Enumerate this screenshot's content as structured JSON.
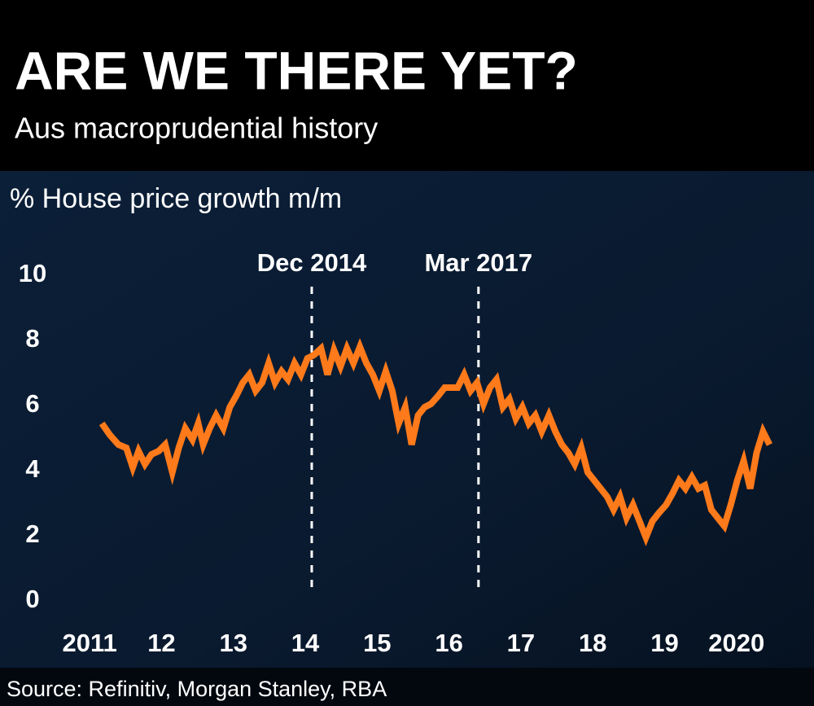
{
  "chart_data": {
    "type": "line",
    "title": "ARE WE THERE YET?",
    "subtitle": "Aus macroprudential history",
    "y_label": "% House price growth m/m",
    "source": "Source: Refinitiv, Morgan Stanley, RBA",
    "color": "#ff7a1a",
    "x": [
      2011.17,
      2011.28,
      2011.4,
      2011.51,
      2011.6,
      2011.68,
      2011.77,
      2011.86,
      2011.96,
      2012.05,
      2012.15,
      2012.24,
      2012.33,
      2012.43,
      2012.51,
      2012.58,
      2012.67,
      2012.76,
      2012.86,
      2012.95,
      2013.04,
      2013.13,
      2013.22,
      2013.31,
      2013.4,
      2013.49,
      2013.58,
      2013.67,
      2013.76,
      2013.85,
      2013.94,
      2014.03,
      2014.12,
      2014.22,
      2014.31,
      2014.4,
      2014.49,
      2014.58,
      2014.67,
      2014.76,
      2014.85,
      2014.94,
      2015.03,
      2015.12,
      2015.21,
      2015.3,
      2015.39,
      2015.48,
      2015.57,
      2015.66,
      2015.75,
      2015.85,
      2015.94,
      2016.03,
      2016.12,
      2016.21,
      2016.3,
      2016.39,
      2016.48,
      2016.57,
      2016.66,
      2016.75,
      2016.84,
      2016.93,
      2017.02,
      2017.11,
      2017.2,
      2017.29,
      2017.39,
      2017.48,
      2017.57,
      2017.66,
      2017.75,
      2017.84,
      2017.93,
      2018.02,
      2018.11,
      2018.2,
      2018.29,
      2018.38,
      2018.47,
      2018.56,
      2018.65,
      2018.74,
      2018.83,
      2018.92,
      2019.02,
      2019.11,
      2019.2,
      2019.29,
      2019.38,
      2019.47,
      2019.56,
      2019.65,
      2019.74,
      2019.83,
      2019.92,
      2020.01,
      2020.1,
      2020.19,
      2020.28,
      2020.37,
      2020.46
    ],
    "values": [
      5.45,
      5.1,
      4.8,
      4.7,
      4.1,
      4.6,
      4.2,
      4.5,
      4.6,
      4.8,
      3.95,
      4.7,
      5.3,
      4.95,
      5.45,
      4.8,
      5.3,
      5.7,
      5.3,
      5.95,
      6.3,
      6.7,
      6.95,
      6.45,
      6.7,
      7.3,
      6.7,
      7.05,
      6.8,
      7.3,
      6.95,
      7.45,
      7.55,
      7.75,
      6.95,
      7.7,
      7.2,
      7.75,
      7.3,
      7.8,
      7.3,
      6.95,
      6.45,
      7.05,
      6.45,
      5.45,
      5.95,
      4.8,
      5.7,
      5.95,
      6.05,
      6.3,
      6.55,
      6.55,
      6.55,
      6.95,
      6.45,
      6.7,
      6.05,
      6.55,
      6.8,
      5.95,
      6.2,
      5.6,
      5.95,
      5.45,
      5.7,
      5.2,
      5.7,
      5.2,
      4.8,
      4.55,
      4.2,
      4.7,
      3.95,
      3.7,
      3.45,
      3.2,
      2.8,
      3.2,
      2.55,
      2.95,
      2.45,
      1.95,
      2.45,
      2.7,
      2.95,
      3.3,
      3.7,
      3.45,
      3.8,
      3.45,
      3.55,
      2.8,
      2.55,
      2.3,
      2.95,
      3.7,
      4.3,
      3.45,
      4.55,
      5.2,
      4.8
    ],
    "xlim": [
      2010.5,
      2020.75
    ],
    "xticks": [
      {
        "value": 2011,
        "label": "2011"
      },
      {
        "value": 2012,
        "label": "12"
      },
      {
        "value": 2013,
        "label": "13"
      },
      {
        "value": 2014,
        "label": "14"
      },
      {
        "value": 2015,
        "label": "15"
      },
      {
        "value": 2016,
        "label": "16"
      },
      {
        "value": 2017,
        "label": "17"
      },
      {
        "value": 2018,
        "label": "18"
      },
      {
        "value": 2019,
        "label": "19"
      },
      {
        "value": 2020,
        "label": "2020"
      }
    ],
    "ylim": [
      0,
      10
    ],
    "yticks": [
      0,
      2,
      4,
      6,
      8,
      10
    ],
    "annotations": [
      {
        "label": "Dec 2014",
        "x": 2014.09
      },
      {
        "label": "Mar 2017",
        "x": 2016.41
      }
    ]
  }
}
